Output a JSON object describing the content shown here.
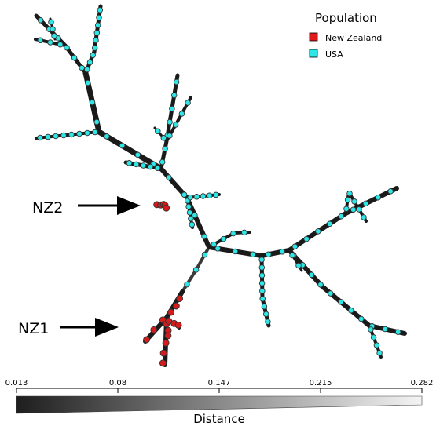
{
  "legend": {
    "title": "Population",
    "items": [
      {
        "label": "New Zealand",
        "color": "#e01b1b"
      },
      {
        "label": "USA",
        "color": "#2ee6e6"
      }
    ]
  },
  "annotations": {
    "nz1": "NZ1",
    "nz2": "NZ2"
  },
  "distance_scale": {
    "title": "Distance",
    "ticks": [
      "0.013",
      "0.08",
      "0.147",
      "0.215",
      "0.282"
    ],
    "gradient": [
      "#1e1e1e",
      "#ffffff"
    ]
  },
  "colors": {
    "edge": "#1a1a1a",
    "node_outline": "#333333",
    "usa_node": "#2ee6e6",
    "nz_node": "#d41a1a"
  }
}
